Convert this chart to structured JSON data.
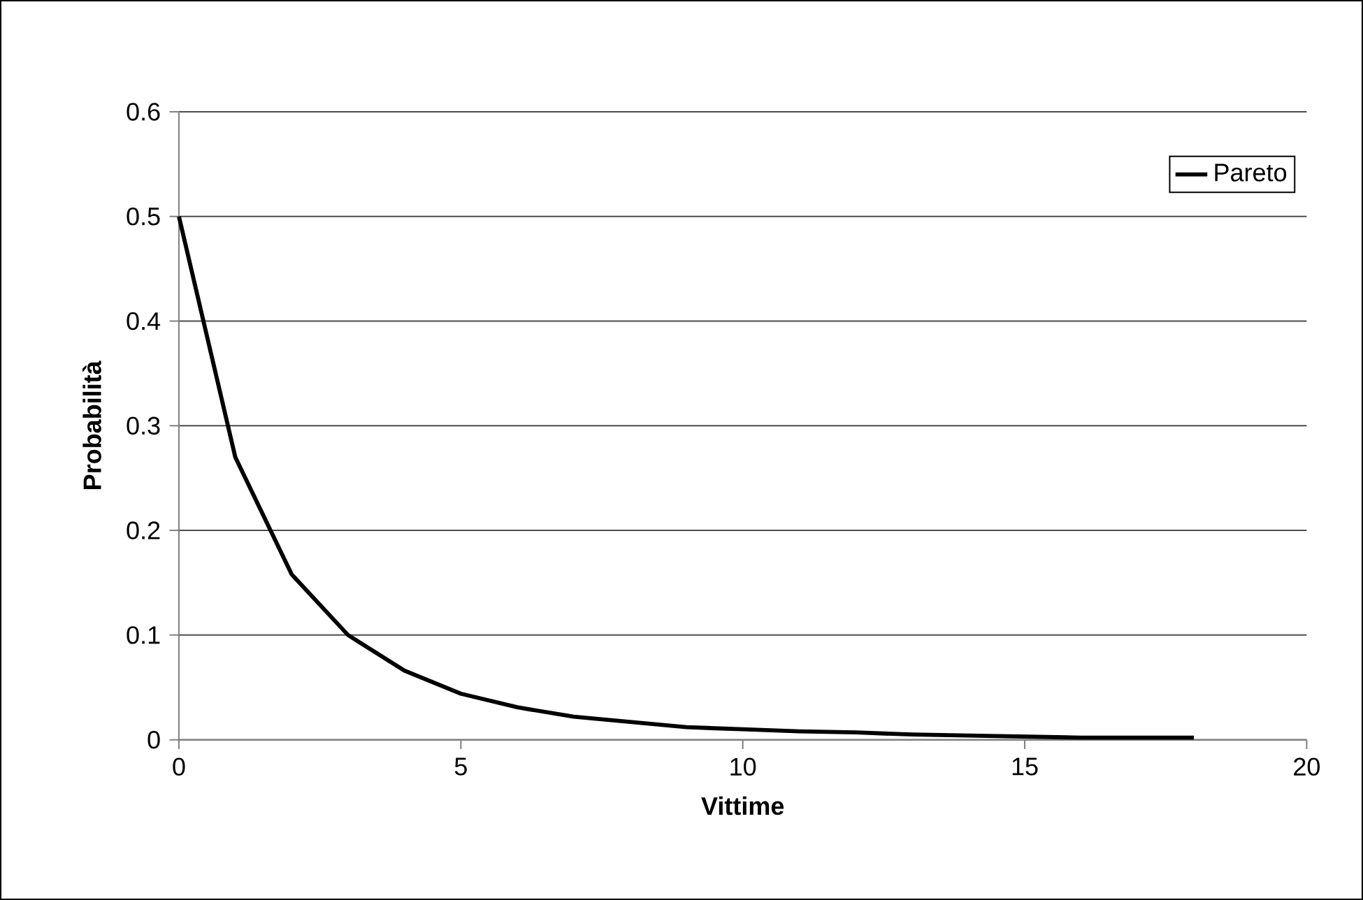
{
  "chart_data": {
    "type": "line",
    "xlabel": "Vittime",
    "ylabel": "Probabilità",
    "x": [
      0,
      1,
      2,
      3,
      4,
      5,
      6,
      7,
      8,
      9,
      10,
      11,
      12,
      13,
      14,
      15,
      16,
      17,
      18
    ],
    "series": [
      {
        "name": "Pareto",
        "color": "#000000",
        "values": [
          0.5,
          0.27,
          0.158,
          0.1,
          0.066,
          0.044,
          0.031,
          0.022,
          0.017,
          0.012,
          0.01,
          0.008,
          0.007,
          0.005,
          0.004,
          0.003,
          0.002,
          0.002,
          0.002
        ]
      }
    ],
    "xlim": [
      0,
      20
    ],
    "xticks": [
      0,
      5,
      10,
      15,
      20
    ],
    "ylim": [
      0,
      0.6
    ],
    "yticks": [
      0,
      0.1,
      0.2,
      0.3,
      0.4,
      0.5,
      0.6
    ],
    "grid": "y",
    "legend": "top right",
    "marker": "none",
    "line_style": "solid"
  }
}
